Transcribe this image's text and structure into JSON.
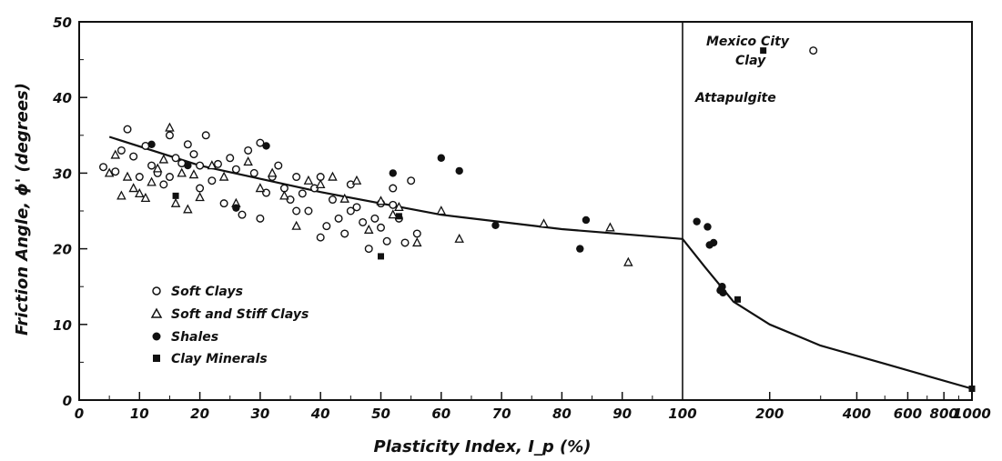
{
  "chart_data": {
    "type": "scatter",
    "xlabel": "Plasticity Index, I_p (%)",
    "ylabel": "Friction Angle, ϕ' (degrees)",
    "ylim": [
      0,
      50
    ],
    "x_scale": "linear 0–100, then log 100–1000",
    "x_ticks_linear": [
      "0",
      "10",
      "20",
      "30",
      "40",
      "50",
      "60",
      "70",
      "80",
      "90",
      "100"
    ],
    "x_ticks_log": [
      "100",
      "200",
      "400",
      "600",
      "800",
      "1000"
    ],
    "y_ticks": [
      "0",
      "10",
      "20",
      "30",
      "40",
      "50"
    ],
    "legend_position": "bottom-left",
    "series": [
      {
        "name": "Soft Clays",
        "marker": "open-circle",
        "points": [
          [
            4,
            30.8
          ],
          [
            6,
            30.2
          ],
          [
            7,
            33
          ],
          [
            8,
            35.8
          ],
          [
            9,
            32.2
          ],
          [
            10,
            29.5
          ],
          [
            11,
            33.6
          ],
          [
            12,
            31
          ],
          [
            13,
            30
          ],
          [
            14,
            28.5
          ],
          [
            15,
            35
          ],
          [
            16,
            32
          ],
          [
            17,
            31.3
          ],
          [
            18,
            33.8
          ],
          [
            19,
            32.5
          ],
          [
            20,
            31
          ],
          [
            21,
            35
          ],
          [
            22,
            29
          ],
          [
            23,
            31.2
          ],
          [
            24,
            26
          ],
          [
            25,
            32
          ],
          [
            26,
            30.5
          ],
          [
            27,
            24.5
          ],
          [
            28,
            33
          ],
          [
            29,
            30
          ],
          [
            30,
            34
          ],
          [
            31,
            27.4
          ],
          [
            32,
            29.5
          ],
          [
            33,
            31
          ],
          [
            34,
            28
          ],
          [
            35,
            26.5
          ],
          [
            36,
            29.5
          ],
          [
            37,
            27.3
          ],
          [
            38,
            25
          ],
          [
            39,
            28
          ],
          [
            40,
            29.5
          ],
          [
            41,
            23
          ],
          [
            42,
            26.5
          ],
          [
            43,
            24
          ],
          [
            44,
            22
          ],
          [
            45,
            28.5
          ],
          [
            46,
            25.5
          ],
          [
            47,
            23.5
          ],
          [
            48,
            20
          ],
          [
            49,
            24
          ],
          [
            50,
            22.8
          ],
          [
            51,
            21
          ],
          [
            52,
            25.8
          ],
          [
            53,
            24
          ],
          [
            54,
            20.8
          ],
          [
            55,
            29
          ],
          [
            56,
            22
          ],
          [
            36,
            25
          ],
          [
            30,
            24
          ],
          [
            20,
            28
          ],
          [
            15,
            29.5
          ],
          [
            40,
            21.5
          ],
          [
            45,
            25
          ],
          [
            50,
            26
          ],
          [
            52,
            28
          ],
          [
            283,
            46.2
          ]
        ]
      },
      {
        "name": "Soft and Stiff Clays",
        "marker": "open-triangle",
        "points": [
          [
            5,
            30
          ],
          [
            6,
            32.4
          ],
          [
            7,
            27
          ],
          [
            8,
            29.5
          ],
          [
            9,
            28
          ],
          [
            10,
            27.3
          ],
          [
            11,
            26.7
          ],
          [
            12,
            28.8
          ],
          [
            13,
            30.6
          ],
          [
            14,
            31.8
          ],
          [
            15,
            36
          ],
          [
            16,
            26
          ],
          [
            17,
            30
          ],
          [
            18,
            25.2
          ],
          [
            19,
            29.8
          ],
          [
            20,
            26.8
          ],
          [
            22,
            31
          ],
          [
            24,
            29.5
          ],
          [
            26,
            26
          ],
          [
            28,
            31.5
          ],
          [
            30,
            28
          ],
          [
            32,
            30
          ],
          [
            34,
            27
          ],
          [
            36,
            23
          ],
          [
            38,
            29
          ],
          [
            40,
            28.5
          ],
          [
            42,
            29.5
          ],
          [
            44,
            26.6
          ],
          [
            46,
            29
          ],
          [
            48,
            22.5
          ],
          [
            50,
            26.3
          ],
          [
            52,
            24.5
          ],
          [
            53,
            25.5
          ],
          [
            56,
            20.8
          ],
          [
            60,
            25
          ],
          [
            63,
            21.3
          ],
          [
            77,
            23.3
          ],
          [
            88,
            22.8
          ],
          [
            91,
            18.2
          ]
        ]
      },
      {
        "name": "Shales",
        "marker": "filled-circle",
        "points": [
          [
            12,
            33.8
          ],
          [
            18,
            31
          ],
          [
            26,
            25.4
          ],
          [
            31,
            33.6
          ],
          [
            52,
            30
          ],
          [
            60,
            32
          ],
          [
            63,
            30.3
          ],
          [
            69,
            23.1
          ],
          [
            83,
            20
          ],
          [
            84,
            23.8
          ],
          [
            112,
            23.6
          ],
          [
            122,
            22.9
          ],
          [
            124,
            20.5
          ],
          [
            128,
            20.8
          ],
          [
            137,
            15
          ],
          [
            138,
            14.2
          ],
          [
            135,
            14.5
          ]
        ]
      },
      {
        "name": "Clay Minerals",
        "marker": "filled-square",
        "points": [
          [
            16,
            27
          ],
          [
            50,
            19
          ],
          [
            53,
            24.3
          ],
          [
            155,
            13.3
          ],
          [
            190,
            46.2
          ],
          [
            1000,
            1.5
          ]
        ]
      }
    ],
    "trend_line": [
      [
        5,
        34.8
      ],
      [
        20,
        31
      ],
      [
        40,
        27.5
      ],
      [
        60,
        24.5
      ],
      [
        80,
        22.6
      ],
      [
        100,
        21.3
      ],
      [
        120,
        17.5
      ],
      [
        150,
        13
      ],
      [
        200,
        10
      ],
      [
        300,
        7.2
      ],
      [
        500,
        4.8
      ],
      [
        700,
        3.2
      ],
      [
        1000,
        1.5
      ]
    ],
    "annotations": {
      "mexico_line1": "Mexico City",
      "mexico_line2": "Clay",
      "attapulgite": "Attapulgite"
    }
  }
}
